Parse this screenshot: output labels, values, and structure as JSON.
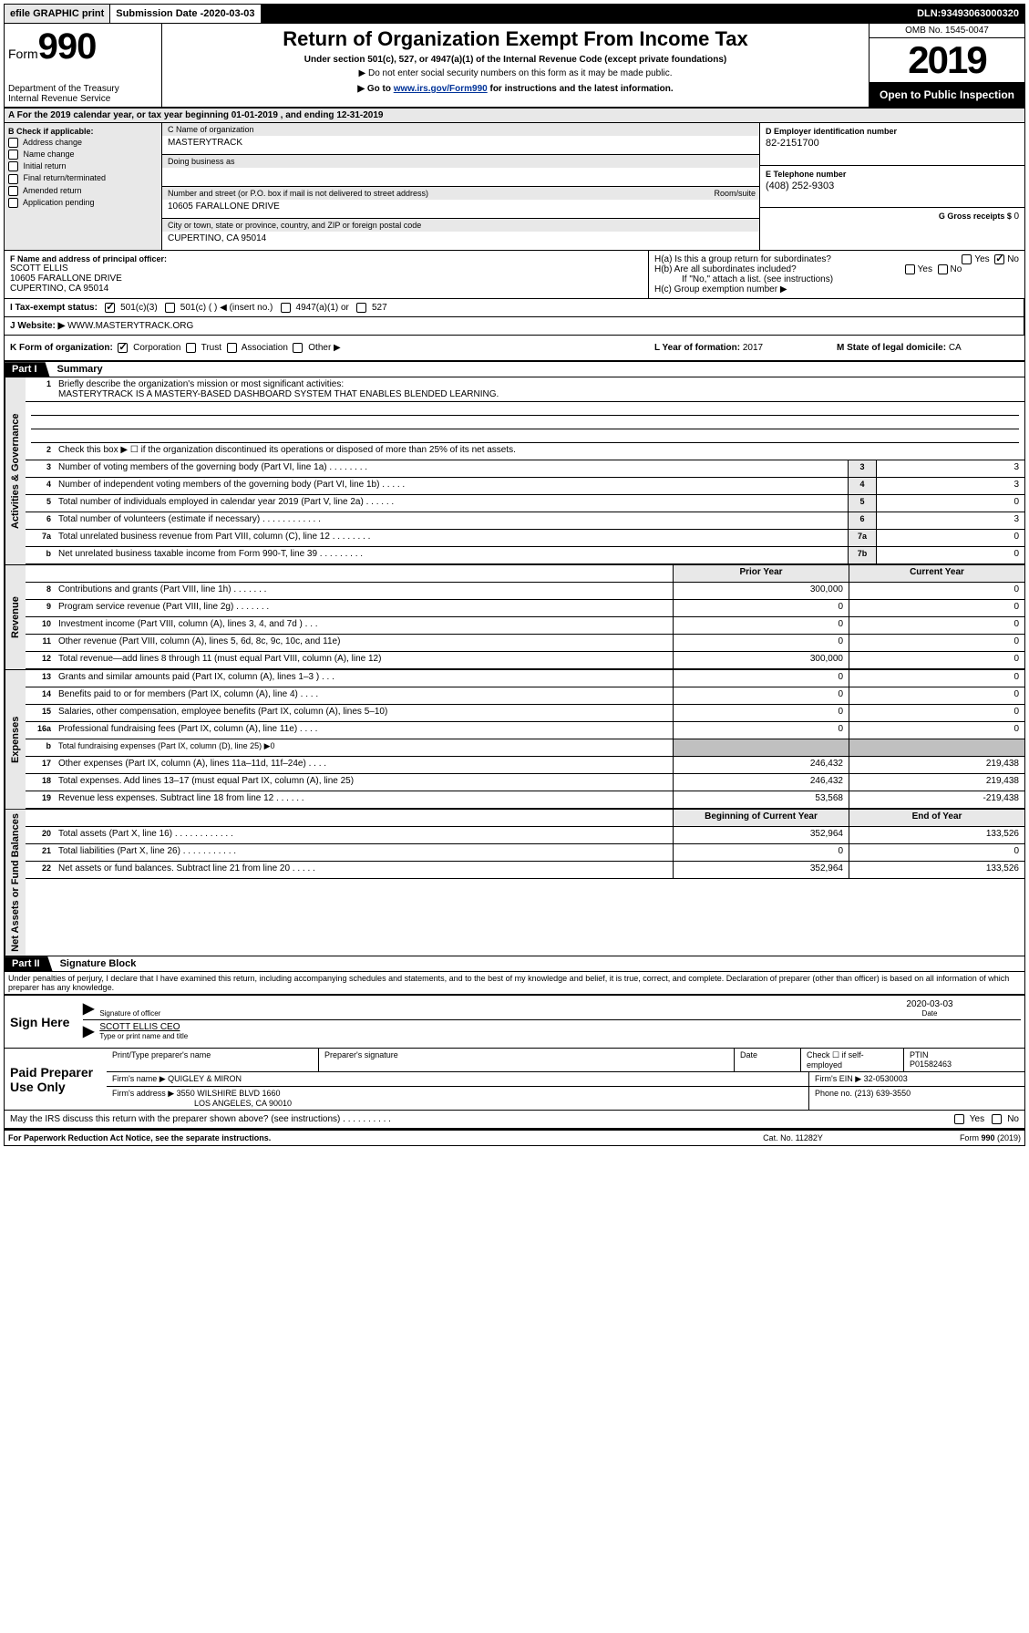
{
  "topbar": {
    "efile": "efile GRAPHIC print",
    "submission_label": "Submission Date - ",
    "submission_date": "2020-03-03",
    "dln_label": "DLN: ",
    "dln": "93493063000320"
  },
  "header": {
    "form_prefix": "Form",
    "form_number": "990",
    "title": "Return of Organization Exempt From Income Tax",
    "subtitle1": "Under section 501(c), 527, or 4947(a)(1) of the Internal Revenue Code (except private foundations)",
    "subtitle2": "▶ Do not enter social security numbers on this form as it may be made public.",
    "subtitle3_pre": "▶ Go to ",
    "subtitle3_link": "www.irs.gov/Form990",
    "subtitle3_post": " for instructions and the latest information.",
    "dept": "Department of the Treasury\nInternal Revenue Service",
    "omb": "OMB No. 1545-0047",
    "year": "2019",
    "open": "Open to Public Inspection"
  },
  "period": "A For the 2019 calendar year, or tax year beginning 01-01-2019    , and ending 12-31-2019",
  "box_b": {
    "label": "B Check if applicable:",
    "items": [
      "Address change",
      "Name change",
      "Initial return",
      "Final return/terminated",
      "Amended return",
      "Application pending"
    ]
  },
  "box_c": {
    "name_lbl": "C Name of organization",
    "name": "MASTERYTRACK",
    "dba_lbl": "Doing business as",
    "dba": "",
    "addr_lbl": "Number and street (or P.O. box if mail is not delivered to street address)",
    "room_lbl": "Room/suite",
    "street": "10605 FARALLONE DRIVE",
    "city_lbl": "City or town, state or province, country, and ZIP or foreign postal code",
    "city": "CUPERTINO, CA  95014"
  },
  "box_d": {
    "lbl": "D Employer identification number",
    "val": "82-2151700"
  },
  "box_e": {
    "lbl": "E Telephone number",
    "val": "(408) 252-9303"
  },
  "box_g": {
    "lbl": "G Gross receipts $ ",
    "val": "0"
  },
  "box_f": {
    "lbl": "F  Name and address of principal officer:",
    "name": "SCOTT ELLIS",
    "street": "10605 FARALLONE DRIVE",
    "city": "CUPERTINO, CA  95014"
  },
  "box_h": {
    "a": "H(a)  Is this a group return for subordinates?",
    "b": "H(b)  Are all subordinates included?",
    "b_note": "If \"No,\" attach a list. (see instructions)",
    "c": "H(c)  Group exemption number ▶",
    "yes": "Yes",
    "no": "No"
  },
  "box_i": {
    "lbl": "I   Tax-exempt status:",
    "opts": [
      "501(c)(3)",
      "501(c) (   ) ◀ (insert no.)",
      "4947(a)(1) or",
      "527"
    ]
  },
  "box_j": {
    "lbl": "J   Website: ▶",
    "val": "  WWW.MASTERYTRACK.ORG"
  },
  "box_k": {
    "lbl": "K Form of organization:",
    "opts": [
      "Corporation",
      "Trust",
      "Association",
      "Other ▶"
    ],
    "l_lbl": "L Year of formation: ",
    "l_val": "2017",
    "m_lbl": "M State of legal domicile: ",
    "m_val": "CA"
  },
  "part1": {
    "tab": "Part I",
    "title": "Summary",
    "sections": [
      {
        "vtab": "Activities & Governance",
        "rows": [
          {
            "n": "1",
            "t": "Briefly describe the organization's mission or most significant activities:",
            "full": true,
            "mission": "MASTERYTRACK IS A MASTERY-BASED DASHBOARD SYSTEM THAT ENABLES BLENDED LEARNING.",
            "blanks": 3
          },
          {
            "n": "2",
            "t": "Check this box ▶ ☐  if the organization discontinued its operations or disposed of more than 25% of its net assets.",
            "full": true
          },
          {
            "n": "3",
            "t": "Number of voting members of the governing body (Part VI, line 1a)   .    .    .    .    .    .    .    .",
            "c": "3",
            "v": "3"
          },
          {
            "n": "4",
            "t": "Number of independent voting members of the governing body (Part VI, line 1b)   .    .    .    .    .",
            "c": "4",
            "v": "3"
          },
          {
            "n": "5",
            "t": "Total number of individuals employed in calendar year 2019 (Part V, line 2a)   .    .    .    .    .    .",
            "c": "5",
            "v": "0"
          },
          {
            "n": "6",
            "t": "Total number of volunteers (estimate if necessary)   .    .    .    .    .    .    .    .    .    .    .    .",
            "c": "6",
            "v": "3"
          },
          {
            "n": "7a",
            "t": "Total unrelated business revenue from Part VIII, column (C), line 12   .    .    .    .    .    .    .    .",
            "c": "7a",
            "v": "0"
          },
          {
            "n": " b",
            "t": "Net unrelated business taxable income from Form 990-T, line 39   .    .    .    .    .    .    .    .    .",
            "c": "7b",
            "v": "0"
          }
        ]
      },
      {
        "vtab": "Revenue",
        "header_row": {
          "prior": "Prior Year",
          "curr": "Current Year"
        },
        "rows": [
          {
            "n": "8",
            "t": "Contributions and grants (Part VIII, line 1h)   .    .    .    .    .    .    .",
            "p": "300,000",
            "c": "0"
          },
          {
            "n": "9",
            "t": "Program service revenue (Part VIII, line 2g)   .    .    .    .    .    .    .",
            "p": "0",
            "c": "0"
          },
          {
            "n": "10",
            "t": "Investment income (Part VIII, column (A), lines 3, 4, and 7d )   .    .    .",
            "p": "0",
            "c": "0"
          },
          {
            "n": "11",
            "t": "Other revenue (Part VIII, column (A), lines 5, 6d, 8c, 9c, 10c, and 11e)",
            "p": "0",
            "c": "0"
          },
          {
            "n": "12",
            "t": "Total revenue—add lines 8 through 11 (must equal Part VIII, column (A), line 12)",
            "p": "300,000",
            "c": "0"
          }
        ]
      },
      {
        "vtab": "Expenses",
        "rows": [
          {
            "n": "13",
            "t": "Grants and similar amounts paid (Part IX, column (A), lines 1–3 )   .    .    .",
            "p": "0",
            "c": "0"
          },
          {
            "n": "14",
            "t": "Benefits paid to or for members (Part IX, column (A), line 4)   .    .    .    .",
            "p": "0",
            "c": "0"
          },
          {
            "n": "15",
            "t": "Salaries, other compensation, employee benefits (Part IX, column (A), lines 5–10)",
            "p": "0",
            "c": "0"
          },
          {
            "n": "16a",
            "t": "Professional fundraising fees (Part IX, column (A), line 11e)   .    .    .    .",
            "p": "0",
            "c": "0"
          },
          {
            "n": " b",
            "t": "Total fundraising expenses (Part IX, column (D), line 25) ▶0",
            "p": "",
            "c": "",
            "gray": true,
            "small": true
          },
          {
            "n": "17",
            "t": "Other expenses (Part IX, column (A), lines 11a–11d, 11f–24e)   .    .    .    .",
            "p": "246,432",
            "c": "219,438"
          },
          {
            "n": "18",
            "t": "Total expenses. Add lines 13–17 (must equal Part IX, column (A), line 25)",
            "p": "246,432",
            "c": "219,438"
          },
          {
            "n": "19",
            "t": "Revenue less expenses. Subtract line 18 from line 12   .    .    .    .    .    .",
            "p": "53,568",
            "c": "-219,438"
          }
        ]
      },
      {
        "vtab": "Net Assets or Fund Balances",
        "header_row": {
          "prior": "Beginning of Current Year",
          "curr": "End of Year"
        },
        "rows": [
          {
            "n": "20",
            "t": "Total assets (Part X, line 16)   .    .    .    .    .    .    .    .    .    .    .    .",
            "p": "352,964",
            "c": "133,526"
          },
          {
            "n": "21",
            "t": "Total liabilities (Part X, line 26)   .    .    .    .    .    .    .    .    .    .    .",
            "p": "0",
            "c": "0"
          },
          {
            "n": "22",
            "t": "Net assets or fund balances. Subtract line 21 from line 20   .    .    .    .    .",
            "p": "352,964",
            "c": "133,526"
          }
        ]
      }
    ]
  },
  "part2": {
    "tab": "Part II",
    "title": "Signature Block",
    "declaration": "Under penalties of perjury, I declare that I have examined this return, including accompanying schedules and statements, and to the best of my knowledge and belief, it is true, correct, and complete. Declaration of preparer (other than officer) is based on all information of which preparer has any knowledge."
  },
  "sign": {
    "label": "Sign Here",
    "sig_officer": "Signature of officer",
    "date_lbl": "Date",
    "date": "2020-03-03",
    "name": "SCOTT ELLIS CEO",
    "name_lbl": "Type or print name and title"
  },
  "preparer": {
    "label": "Paid Preparer Use Only",
    "h1": "Print/Type preparer's name",
    "h2": "Preparer's signature",
    "h3": "Date",
    "h4_chk": "Check ☐ if self-employed",
    "h5": "PTIN",
    "ptin": "P01582463",
    "firm_name_lbl": "Firm's name    ▶",
    "firm_name": "QUIGLEY & MIRON",
    "firm_ein_lbl": "Firm's EIN ▶",
    "firm_ein": "32-0530003",
    "firm_addr_lbl": "Firm's address ▶",
    "firm_addr1": "3550 WILSHIRE BLVD 1660",
    "firm_addr2": "LOS ANGELES, CA  90010",
    "phone_lbl": "Phone no. ",
    "phone": "(213) 639-3550"
  },
  "discuss": "May the IRS discuss this return with the preparer shown above? (see instructions)    .    .    .    .    .    .    .    .    .    .",
  "footer": {
    "left": "For Paperwork Reduction Act Notice, see the separate instructions.",
    "mid": "Cat. No. 11282Y",
    "right": "Form 990 (2019)"
  }
}
